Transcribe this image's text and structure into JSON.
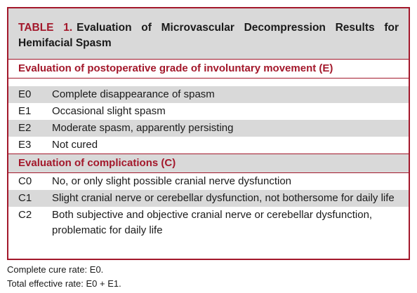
{
  "table": {
    "label": "TABLE 1.",
    "title": "Evaluation of Microvascular Decompression Results for Hemifacial Spasm",
    "sections": [
      {
        "heading": "Evaluation of postoperative grade of involuntary movement (E)",
        "rows": [
          [
            "E0",
            "Complete disappearance of spasm"
          ],
          [
            "E1",
            "Occasional slight spasm"
          ],
          [
            "E2",
            "Moderate spasm, apparently persisting"
          ],
          [
            "E3",
            "Not cured"
          ]
        ]
      },
      {
        "heading": "Evaluation of complications (C)",
        "rows": [
          [
            "C0",
            "No, or only slight possible cranial nerve dysfunction"
          ],
          [
            "C1",
            "Slight cranial nerve or cerebellar dysfunction, not bothersome for daily life"
          ],
          [
            "C2",
            "Both subjective and objective cranial nerve or cerebellar dysfunction, problematic for daily life"
          ]
        ]
      }
    ]
  },
  "footnotes": [
    "Complete cure rate: E0.",
    "Total effective rate: E0 + E1."
  ]
}
